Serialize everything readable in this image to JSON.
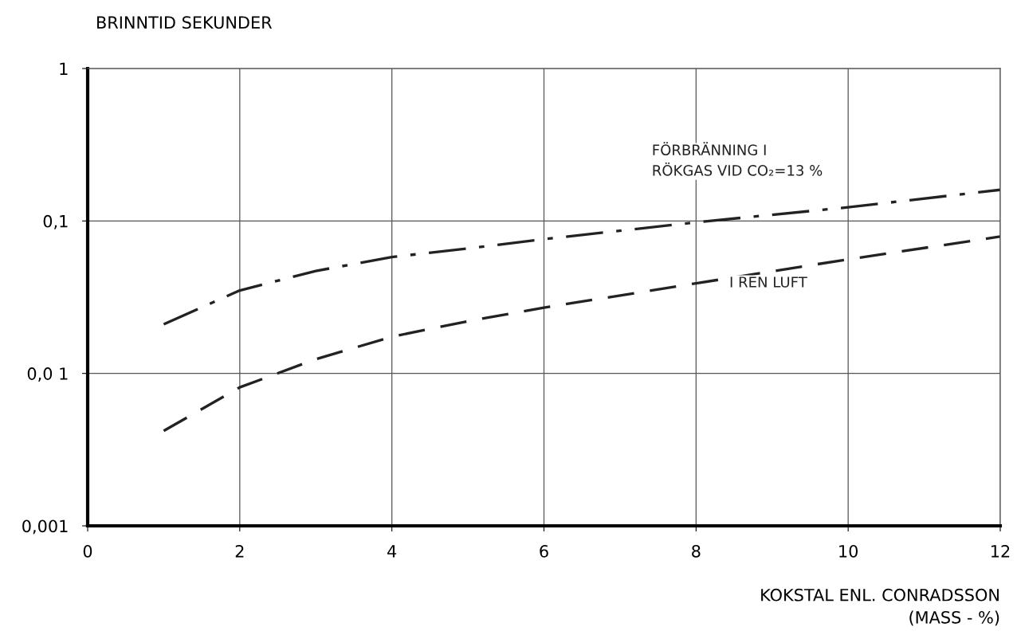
{
  "chart_data": {
    "type": "line",
    "xlabel": "KOKSTAL ENL. CONRADSSON\n(MASS - %)",
    "ylabel": "BRINNTID SEKUNDER",
    "log": "y",
    "grid": true,
    "legend": false,
    "xlim": [
      0,
      12
    ],
    "xticks": [
      0,
      2,
      4,
      6,
      8,
      10,
      12
    ],
    "ylim": [
      0.001,
      1
    ],
    "yticks": [
      {
        "value": 0.001,
        "label": "0,001"
      },
      {
        "value": 0.01,
        "label": "0,0 1"
      },
      {
        "value": 0.1,
        "label": "0,1"
      },
      1
    ],
    "x": [
      1,
      2,
      3,
      4,
      5,
      6,
      8,
      10,
      12
    ],
    "series": [
      {
        "name": "FÖRBRÄNNING I\nRÖKGAS VID CO₂=13 %",
        "color": "#222222",
        "line_style": "dashdot",
        "values": [
          0.021,
          0.035,
          0.047,
          0.058,
          0.066,
          0.076,
          0.098,
          0.123,
          0.16
        ]
      },
      {
        "name": "I REN LUFT",
        "color": "#222222",
        "line_style": "dashed",
        "values": [
          0.0042,
          0.0081,
          0.0124,
          0.0174,
          0.022,
          0.027,
          0.039,
          0.056,
          0.079
        ]
      }
    ]
  }
}
